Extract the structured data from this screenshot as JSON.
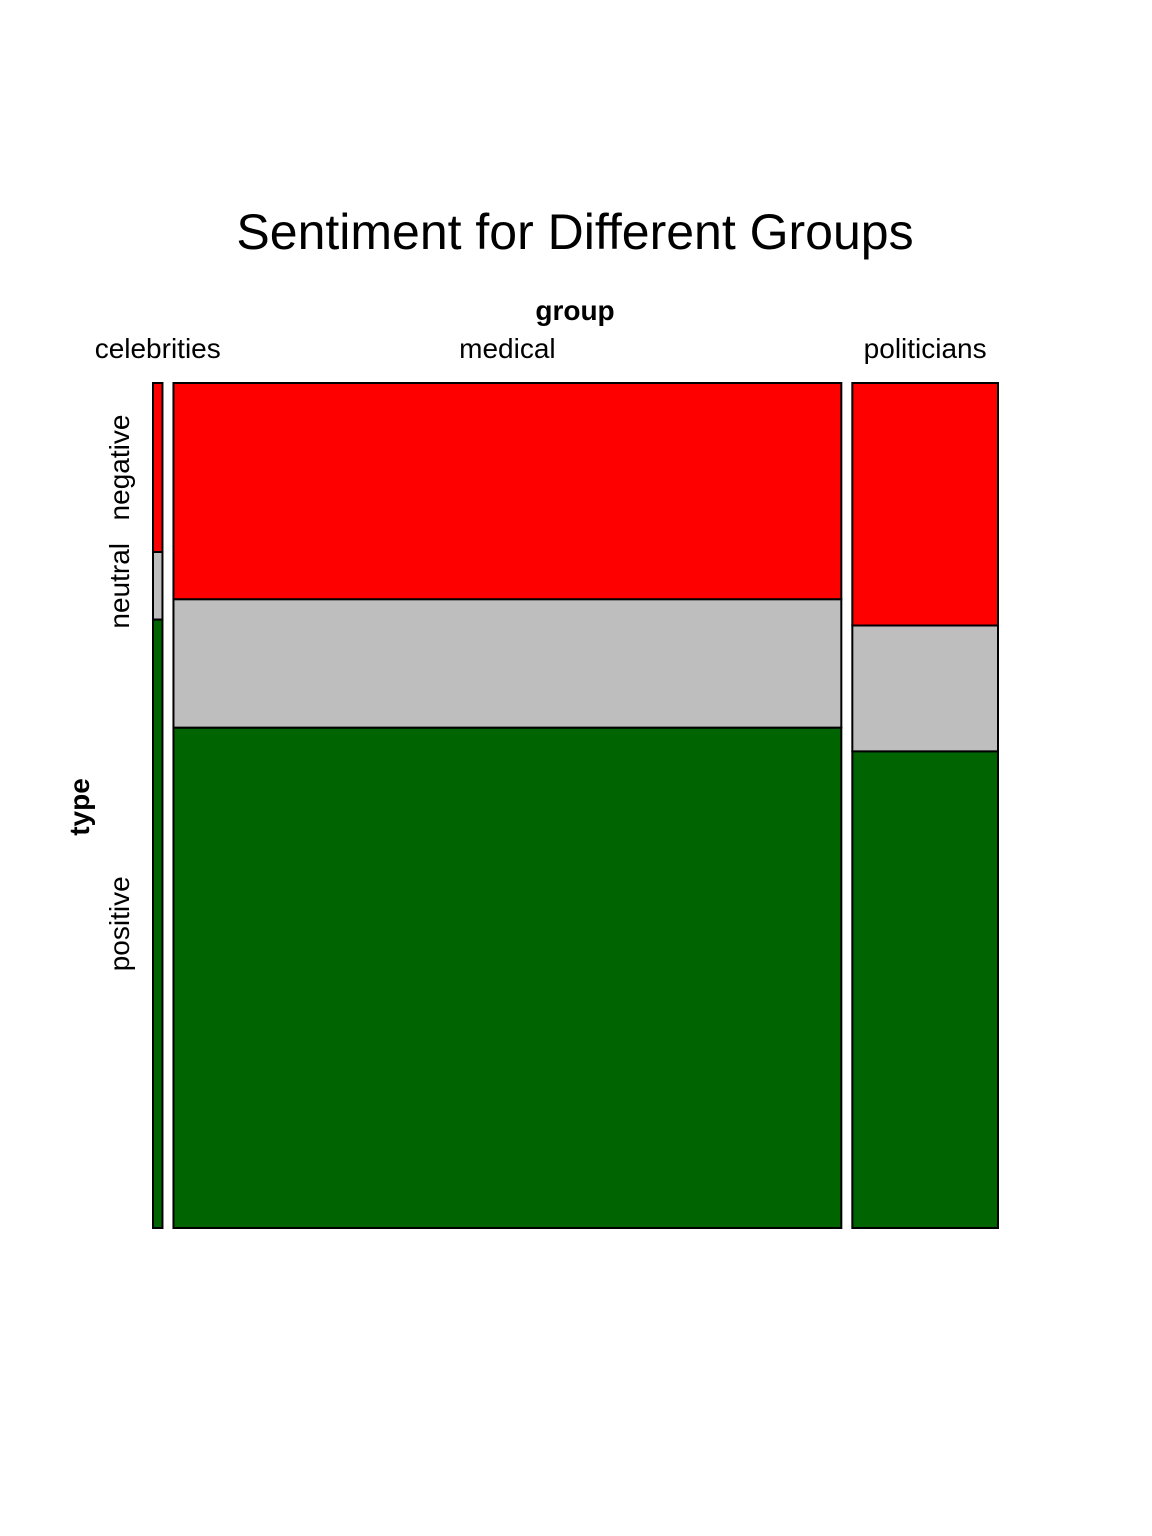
{
  "chart_data": {
    "type": "mosaic",
    "title": "Sentiment for Different Groups",
    "x_variable": "group",
    "y_variable": "type",
    "groups": [
      {
        "name": "celebrities",
        "width_fraction": 0.0115,
        "segments": [
          {
            "type": "negative",
            "fraction": 0.2
          },
          {
            "type": "neutral",
            "fraction": 0.08
          },
          {
            "type": "positive",
            "fraction": 0.72
          }
        ]
      },
      {
        "name": "medical",
        "width_fraction": 0.8115,
        "segments": [
          {
            "type": "negative",
            "fraction": 0.256
          },
          {
            "type": "neutral",
            "fraction": 0.152
          },
          {
            "type": "positive",
            "fraction": 0.592
          }
        ]
      },
      {
        "name": "politicians",
        "width_fraction": 0.177,
        "segments": [
          {
            "type": "negative",
            "fraction": 0.287
          },
          {
            "type": "neutral",
            "fraction": 0.149
          },
          {
            "type": "positive",
            "fraction": 0.564
          }
        ]
      }
    ],
    "type_levels": [
      "negative",
      "neutral",
      "positive"
    ],
    "colors": {
      "negative": "#FF0000",
      "neutral": "#BEBEBE",
      "positive": "#006400"
    }
  }
}
